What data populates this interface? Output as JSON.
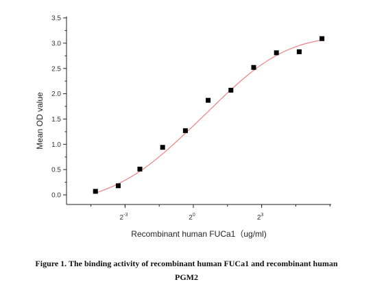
{
  "chart_data": {
    "type": "scatter",
    "xlabel": "Recombinant human  FUCa1（ug/ml)",
    "ylabel": "Mean OD value",
    "ylim": [
      0,
      3.5
    ],
    "yticks": [
      "0.0",
      "0.5",
      "1.0",
      "1.5",
      "2.0",
      "2.5",
      "3.0",
      "3.5"
    ],
    "xscale": "log2",
    "xticks": [
      {
        "base": "2",
        "exp": "-3",
        "log2": -3
      },
      {
        "base": "2",
        "exp": "0",
        "log2": 0
      },
      {
        "base": "2",
        "exp": "3",
        "log2": 3
      }
    ],
    "points_log2x": [
      {
        "x": -4.3,
        "y": 0.07
      },
      {
        "x": -3.3,
        "y": 0.18
      },
      {
        "x": -2.35,
        "y": 0.51
      },
      {
        "x": -1.35,
        "y": 0.94
      },
      {
        "x": -0.35,
        "y": 1.27
      },
      {
        "x": 0.65,
        "y": 1.87
      },
      {
        "x": 1.65,
        "y": 2.07
      },
      {
        "x": 2.65,
        "y": 2.52
      },
      {
        "x": 3.65,
        "y": 2.81
      },
      {
        "x": 4.65,
        "y": 2.83
      },
      {
        "x": 5.65,
        "y": 3.09
      }
    ],
    "fit_curve": [
      {
        "x": -4.3,
        "y": 0.03
      },
      {
        "x": -3.3,
        "y": 0.22
      },
      {
        "x": -2.3,
        "y": 0.48
      },
      {
        "x": -1.3,
        "y": 0.83
      },
      {
        "x": -0.3,
        "y": 1.24
      },
      {
        "x": 0.7,
        "y": 1.67
      },
      {
        "x": 1.7,
        "y": 2.1
      },
      {
        "x": 2.7,
        "y": 2.48
      },
      {
        "x": 3.7,
        "y": 2.77
      },
      {
        "x": 4.7,
        "y": 2.96
      },
      {
        "x": 5.7,
        "y": 3.07
      }
    ],
    "marker_color": "#000000",
    "curve_color": "#f08080",
    "grid": false
  },
  "caption": {
    "line1": "Figure 1. The binding activity of recombinant human FUCa1 and recombinant human",
    "line2": "PGM2"
  }
}
